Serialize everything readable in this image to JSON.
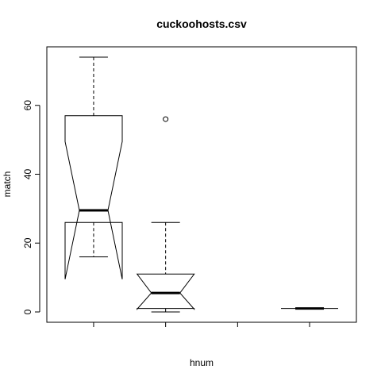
{
  "chart_data": {
    "type": "boxplot",
    "title": "cuckoohosts.csv",
    "xlabel": "hnum",
    "ylabel": "match",
    "ylim": [
      -3,
      77
    ],
    "yticks": [
      0,
      20,
      40,
      60
    ],
    "notched": true,
    "grid": false,
    "legend": "none",
    "groups": [
      {
        "position": 1,
        "min": 16,
        "q1": 26,
        "median": 29.5,
        "q3": 57,
        "max": 74,
        "notch_low": 9.5,
        "notch_high": 49.5,
        "outliers": []
      },
      {
        "position": 2,
        "min": 0,
        "q1": 1,
        "median": 5.5,
        "q3": 11,
        "max": 26,
        "notch_low": 0.8,
        "notch_high": 11,
        "outliers": [
          56
        ]
      },
      {
        "position": 3,
        "empty": true
      },
      {
        "position": 4,
        "min": 1,
        "q1": 1,
        "median": 1,
        "q3": 1,
        "max": 1,
        "notch_low": 1,
        "notch_high": 1,
        "outliers": []
      }
    ],
    "xlim": [
      0.35,
      4.65
    ]
  }
}
